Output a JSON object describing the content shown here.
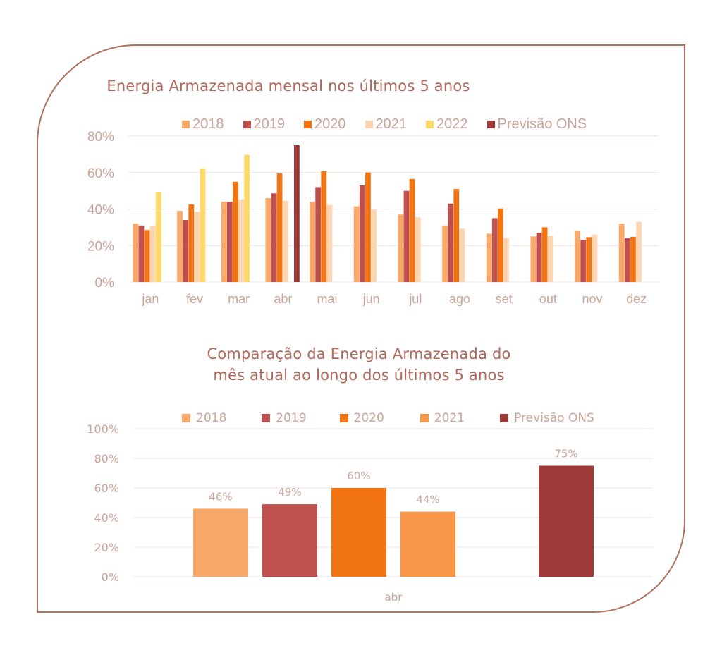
{
  "colors": {
    "frame": "#B0705E",
    "title": "#B0685A",
    "axis_text": "#C9A59A",
    "grid": "#F2E6E3",
    "series": {
      "2018": "#F8A96A",
      "2019": "#C0504D",
      "2020": "#F27412",
      "2021": "#FDD5B3",
      "2021_chart2": "#F79646",
      "2022": "#FFD966",
      "previsao": "#9E3A38"
    }
  },
  "chart_data": [
    {
      "type": "bar",
      "title": "Energia Armazenada mensal nos últimos 5 anos",
      "xlabel": "",
      "ylabel": "",
      "ylim": [
        0,
        80
      ],
      "yticks": [
        "0%",
        "20%",
        "40%",
        "60%",
        "80%"
      ],
      "ytick_values": [
        0,
        20,
        40,
        60,
        80
      ],
      "grid": true,
      "legend_position": "top",
      "categories": [
        "jan",
        "fev",
        "mar",
        "abr",
        "mai",
        "jun",
        "jul",
        "ago",
        "set",
        "out",
        "nov",
        "dez"
      ],
      "series": [
        {
          "name": "2018",
          "color_key": "2018",
          "values": [
            32,
            39,
            44,
            46,
            44,
            41.5,
            37,
            31,
            26.5,
            25,
            28,
            32
          ]
        },
        {
          "name": "2019",
          "color_key": "2019",
          "values": [
            31,
            34,
            44,
            48.6,
            52,
            53,
            50,
            43,
            35,
            27,
            23,
            24
          ]
        },
        {
          "name": "2020",
          "color_key": "2020",
          "values": [
            28.5,
            42.5,
            55,
            59.5,
            60.7,
            60,
            56.5,
            51,
            40.3,
            30,
            24.6,
            24.8
          ]
        },
        {
          "name": "2021",
          "color_key": "2021",
          "values": [
            31,
            38.5,
            45.3,
            44.5,
            42.3,
            39.7,
            35.4,
            29.2,
            24,
            25.3,
            26,
            33
          ]
        },
        {
          "name": "2022",
          "color_key": "2022",
          "values": [
            49.5,
            62,
            69.7,
            null,
            null,
            null,
            null,
            null,
            null,
            null,
            null,
            null
          ]
        },
        {
          "name": "Previsão ONS",
          "color_key": "previsao",
          "values": [
            null,
            null,
            null,
            75,
            null,
            null,
            null,
            null,
            null,
            null,
            null,
            null
          ]
        }
      ]
    },
    {
      "type": "bar",
      "title": "Comparação da Energia Armazenada do mês atual ao longo dos últimos 5 anos",
      "title_lines": [
        "Comparação da Energia Armazenada do",
        "mês atual ao longo dos últimos 5 anos"
      ],
      "xlabel": "",
      "ylabel": "",
      "ylim": [
        0,
        100
      ],
      "yticks": [
        "0%",
        "20%",
        "40%",
        "60%",
        "80%",
        "100%"
      ],
      "ytick_values": [
        0,
        20,
        40,
        60,
        80,
        100
      ],
      "grid": true,
      "legend_position": "top",
      "categories": [
        "abr"
      ],
      "series": [
        {
          "name": "2018",
          "color_key": "2018",
          "values": [
            46
          ],
          "label": "46%"
        },
        {
          "name": "2019",
          "color_key": "2019",
          "values": [
            49
          ],
          "label": "49%"
        },
        {
          "name": "2020",
          "color_key": "2020",
          "values": [
            60
          ],
          "label": "60%"
        },
        {
          "name": "2021",
          "color_key": "2021_chart2",
          "values": [
            44
          ],
          "label": "44%"
        },
        {
          "name": "2022",
          "color_key": "2022",
          "values": [
            null
          ],
          "label": "",
          "hidden_in_legend": true
        },
        {
          "name": "Previsão ONS",
          "color_key": "previsao",
          "values": [
            75
          ],
          "label": "75%"
        }
      ]
    }
  ]
}
